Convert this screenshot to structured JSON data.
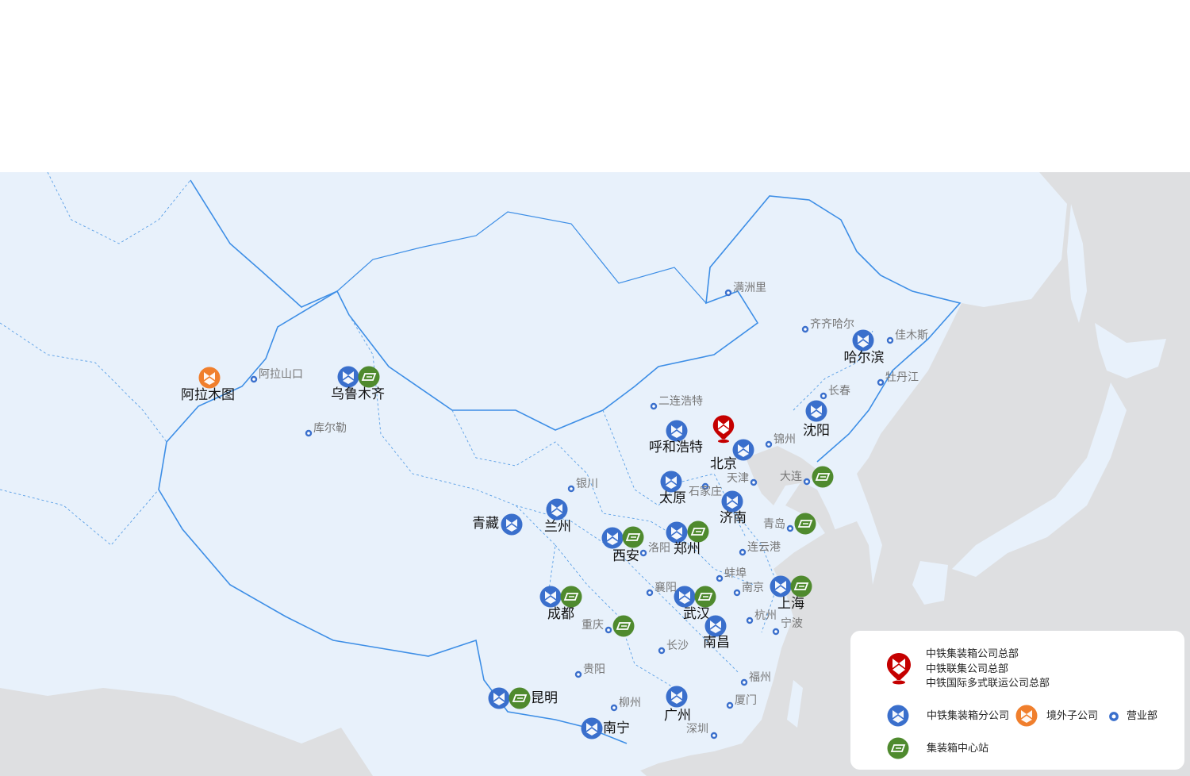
{
  "colors": {
    "land": "#e8f1fb",
    "ocean": "#dedfe1",
    "border": "#3d8ee6",
    "branch": "#3a6fcc",
    "center": "#4f8a2e",
    "overseas": "#f07f2d",
    "hq": "#c50000",
    "sales": "#3a6fcc"
  },
  "cities": {
    "almaty": "阿拉木图",
    "alashankou": "阿拉山口",
    "urumqi": "乌鲁木齐",
    "korla": "库尔勒",
    "manzhouli": "满洲里",
    "qiqihar": "齐齐哈尔",
    "harbin": "哈尔滨",
    "jiamusi": "佳木斯",
    "mudanjiang": "牡丹江",
    "changchun": "长春",
    "shenyang": "沈阳",
    "jinzhou": "锦州",
    "erenhot": "二连浩特",
    "hohhot": "呼和浩特",
    "beijing": "北京",
    "tianjin": "天津",
    "dalian": "大连",
    "taiyuan": "太原",
    "shijiazhuang": "石家庄",
    "jinan": "济南",
    "yinchuan": "银川",
    "qingdao": "青岛",
    "qingzang": "青藏",
    "lanzhou": "兰州",
    "xian": "西安",
    "luoyang": "洛阳",
    "zhengzhou": "郑州",
    "lianyungang": "连云港",
    "bengbu": "蚌埠",
    "nanjing": "南京",
    "xiangyang": "襄阳",
    "chengdu": "成都",
    "wuhan": "武汉",
    "shanghai": "上海",
    "hangzhou": "杭州",
    "ningbo": "宁波",
    "chongqing": "重庆",
    "nanchang": "南昌",
    "changsha": "长沙",
    "guiyang": "贵阳",
    "fuzhou": "福州",
    "kunming": "昆明",
    "liuzhou": "柳州",
    "guangzhou": "广州",
    "xiamen": "厦门",
    "nanning": "南宁",
    "shenzhen": "深圳"
  },
  "legend": {
    "hq_lines": [
      "中铁集装箱公司总部",
      "中铁联集公司总部",
      "中铁国际多式联运公司总部"
    ],
    "branch": "中铁集装箱分公司",
    "overseas": "境外子公司",
    "sales": "营业部",
    "center": "集装箱中心站"
  }
}
